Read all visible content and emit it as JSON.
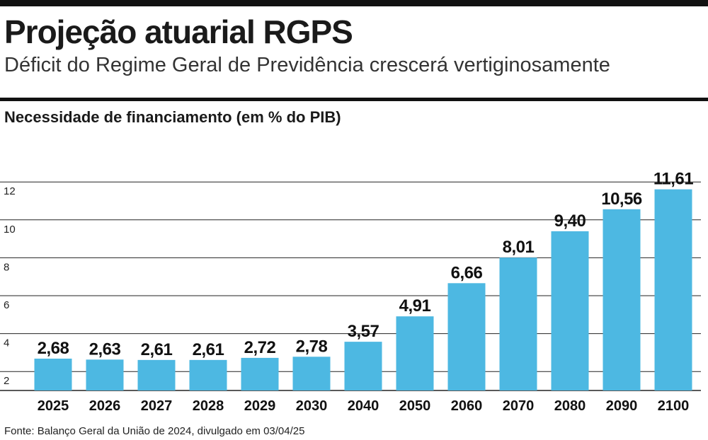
{
  "header": {
    "title": "Projeção atuarial RGPS",
    "subtitle": "Déficit do Regime Geral de Previdência crescerá vertiginosamente"
  },
  "source": "Fonte: Balanço Geral da União de 2024, divulgado em 03/04/25",
  "colors": {
    "bar": "#4db8e2",
    "grid": "#222222",
    "rule": "#111111"
  },
  "chart_data": {
    "type": "bar",
    "title": "Necessidade de financiamento (em % do PIB)",
    "categories": [
      "2025",
      "2026",
      "2027",
      "2028",
      "2029",
      "2030",
      "2040",
      "2050",
      "2060",
      "2070",
      "2080",
      "2090",
      "2100"
    ],
    "values": [
      2.68,
      2.63,
      2.61,
      2.61,
      2.72,
      2.78,
      3.57,
      4.91,
      6.66,
      8.01,
      9.4,
      10.56,
      11.61
    ],
    "value_labels": [
      "2,68",
      "2,63",
      "2,61",
      "2,61",
      "2,72",
      "2,78",
      "3,57",
      "4,91",
      "6,66",
      "8,01",
      "9,40",
      "10,56",
      "11,61"
    ],
    "y_ticks": [
      2,
      4,
      6,
      8,
      10,
      12
    ],
    "ylim": [
      1,
      13
    ],
    "grid": true,
    "legend": "none"
  }
}
